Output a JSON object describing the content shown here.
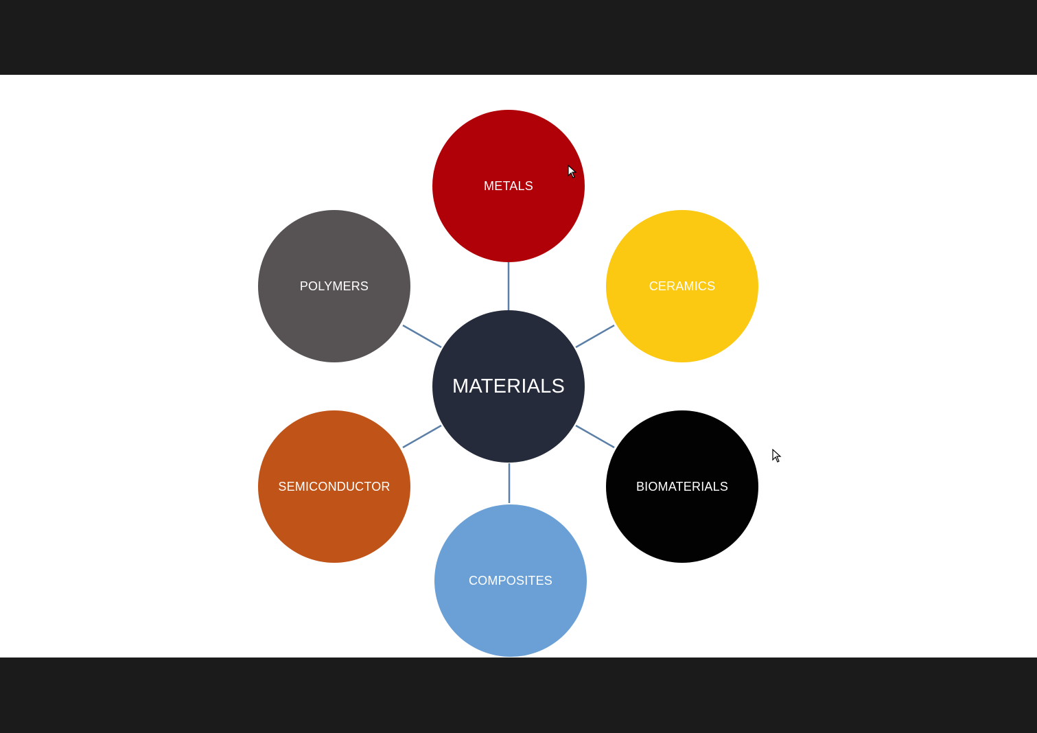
{
  "diagram": {
    "hub": {
      "label": "MATERIALS",
      "color": "#262b3b"
    },
    "nodes": [
      {
        "id": "metals",
        "label": "METALS",
        "color": "#b00008"
      },
      {
        "id": "ceramics",
        "label": "CERAMICS",
        "color": "#fbc812"
      },
      {
        "id": "biomaterials",
        "label": "BIOMATERIALS",
        "color": "#030203"
      },
      {
        "id": "composites",
        "label": "COMPOSITES",
        "color": "#6aa0d6"
      },
      {
        "id": "semiconductor",
        "label": "SEMICONDUCTOR",
        "color": "#bf5318"
      },
      {
        "id": "polymers",
        "label": "POLYMERS",
        "color": "#575355"
      }
    ],
    "connector_color": "#5b7fa6"
  },
  "viewer": {
    "background_color": "#1b1b1b",
    "slide_color": "#ffffff"
  }
}
